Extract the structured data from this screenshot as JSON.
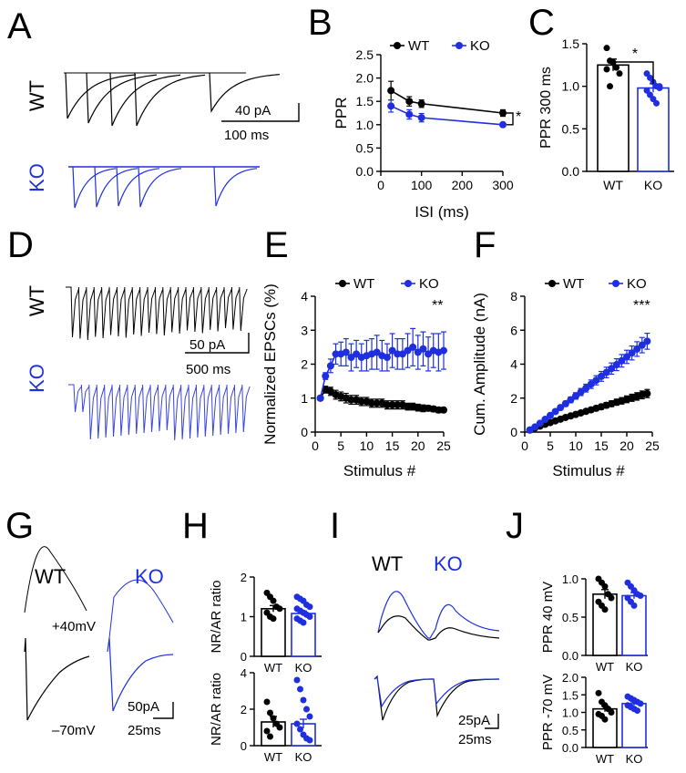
{
  "colors": {
    "wt": "#000000",
    "ko": "#1f2fe0"
  },
  "panel_labels": {
    "A": "A",
    "B": "B",
    "C": "C",
    "D": "D",
    "E": "E",
    "F": "F",
    "G": "G",
    "H": "H",
    "I": "I",
    "J": "J"
  },
  "conditions": {
    "wt": "WT",
    "ko": "KO"
  },
  "traces": {
    "A": {
      "scale_y": "40 pA",
      "scale_x": "100 ms"
    },
    "D": {
      "scale_y": "50 pA",
      "scale_x": "500 ms"
    },
    "G": {
      "hold_pos": "+40mV",
      "hold_neg": "–70mV",
      "scale_y": "50pA",
      "scale_x": "25ms"
    },
    "I": {
      "scale_y": "25pA",
      "scale_x": "25ms"
    }
  },
  "chart_data": [
    {
      "panel": "B",
      "type": "line",
      "xlabel": "ISI (ms)",
      "ylabel": "PPR",
      "xlim": [
        0,
        300
      ],
      "ylim": [
        0,
        2.5
      ],
      "xticks": [
        "0",
        "100",
        "200",
        "300"
      ],
      "yticks": [
        "0.0",
        "0.5",
        "1.0",
        "1.5",
        "2.0",
        "2.5"
      ],
      "legend": [
        "WT",
        "KO"
      ],
      "significance": "*",
      "x": [
        25,
        70,
        100,
        300
      ],
      "series": [
        {
          "name": "WT",
          "values": [
            1.73,
            1.5,
            1.45,
            1.25
          ],
          "errors": [
            0.2,
            0.1,
            0.08,
            0.07
          ]
        },
        {
          "name": "KO",
          "values": [
            1.4,
            1.22,
            1.15,
            1.0
          ],
          "errors": [
            0.13,
            0.1,
            0.09,
            0.04
          ]
        }
      ]
    },
    {
      "panel": "C",
      "type": "bar",
      "ylabel": "PPR 300 ms",
      "ylim": [
        0,
        1.5
      ],
      "yticks": [
        "0.0",
        "0.5",
        "1.0",
        "1.5"
      ],
      "categories": [
        "WT",
        "KO"
      ],
      "values": [
        1.25,
        0.98
      ],
      "errors": [
        0.07,
        0.05
      ],
      "significance": "*",
      "points": [
        [
          1.45,
          1.3,
          1.28,
          1.22,
          1.15,
          1.2,
          1.0
        ],
        [
          1.15,
          1.1,
          1.05,
          1.0,
          0.98,
          0.95,
          0.9,
          0.85,
          0.8,
          1.0
        ]
      ]
    },
    {
      "panel": "E",
      "type": "line",
      "xlabel": "Stimulus #",
      "ylabel": "Normalized EPSCs (%)",
      "xlim": [
        0,
        25
      ],
      "ylim": [
        0,
        4
      ],
      "xticks": [
        "0",
        "5",
        "10",
        "15",
        "20",
        "25"
      ],
      "yticks": [
        "0",
        "1",
        "2",
        "3",
        "4"
      ],
      "legend": [
        "WT",
        "KO"
      ],
      "significance": "**",
      "x": [
        1,
        2,
        3,
        4,
        5,
        6,
        7,
        8,
        9,
        10,
        11,
        12,
        13,
        14,
        15,
        16,
        17,
        18,
        19,
        20,
        21,
        22,
        23,
        24,
        25
      ],
      "series": [
        {
          "name": "WT",
          "values": [
            1.0,
            1.25,
            1.2,
            1.1,
            1.05,
            1.0,
            0.95,
            0.95,
            0.9,
            0.9,
            0.85,
            0.85,
            0.85,
            0.8,
            0.8,
            0.8,
            0.8,
            0.75,
            0.75,
            0.72,
            0.7,
            0.7,
            0.68,
            0.65,
            0.65
          ],
          "errors": [
            0,
            0.1,
            0.12,
            0.13,
            0.13,
            0.14,
            0.13,
            0.13,
            0.12,
            0.12,
            0.12,
            0.12,
            0.12,
            0.12,
            0.12,
            0.12,
            0.12,
            0.1,
            0.1,
            0.1,
            0.1,
            0.08,
            0.08,
            0.08,
            0.06
          ]
        },
        {
          "name": "KO",
          "values": [
            1.0,
            1.65,
            1.95,
            2.3,
            2.3,
            2.35,
            2.2,
            2.3,
            2.2,
            2.25,
            2.3,
            2.35,
            2.25,
            2.2,
            2.4,
            2.3,
            2.3,
            2.4,
            2.5,
            2.35,
            2.45,
            2.3,
            2.4,
            2.35,
            2.4
          ],
          "errors": [
            0,
            0.1,
            0.2,
            0.3,
            0.35,
            0.4,
            0.4,
            0.4,
            0.4,
            0.45,
            0.45,
            0.5,
            0.45,
            0.4,
            0.5,
            0.45,
            0.45,
            0.5,
            0.55,
            0.5,
            0.5,
            0.5,
            0.5,
            0.55,
            0.55
          ]
        }
      ]
    },
    {
      "panel": "F",
      "type": "line",
      "xlabel": "Stimulus #",
      "ylabel": "Cum. Amplitude (nA)",
      "xlim": [
        0,
        25
      ],
      "ylim": [
        0,
        8
      ],
      "xticks": [
        "0",
        "5",
        "10",
        "15",
        "20",
        "25"
      ],
      "yticks": [
        "0",
        "2",
        "4",
        "6",
        "8"
      ],
      "legend": [
        "WT",
        "KO"
      ],
      "significance": "***",
      "x": [
        1,
        2,
        3,
        4,
        5,
        6,
        7,
        8,
        9,
        10,
        11,
        12,
        13,
        14,
        15,
        16,
        17,
        18,
        19,
        20,
        21,
        22,
        23,
        24
      ],
      "series": [
        {
          "name": "WT",
          "values": [
            0.12,
            0.24,
            0.35,
            0.46,
            0.56,
            0.66,
            0.76,
            0.86,
            0.95,
            1.04,
            1.13,
            1.22,
            1.31,
            1.4,
            1.49,
            1.58,
            1.67,
            1.76,
            1.84,
            1.93,
            2.02,
            2.1,
            2.19,
            2.27
          ],
          "errors": [
            0.01,
            0.02,
            0.03,
            0.04,
            0.05,
            0.06,
            0.07,
            0.08,
            0.09,
            0.1,
            0.11,
            0.12,
            0.13,
            0.14,
            0.15,
            0.16,
            0.17,
            0.18,
            0.19,
            0.2,
            0.21,
            0.22,
            0.23,
            0.24
          ]
        },
        {
          "name": "KO",
          "values": [
            0.12,
            0.3,
            0.52,
            0.75,
            0.98,
            1.21,
            1.44,
            1.67,
            1.9,
            2.13,
            2.36,
            2.59,
            2.82,
            3.05,
            3.28,
            3.51,
            3.74,
            3.97,
            4.2,
            4.43,
            4.66,
            4.89,
            5.12,
            5.35
          ],
          "errors": [
            0.01,
            0.03,
            0.05,
            0.07,
            0.09,
            0.11,
            0.13,
            0.15,
            0.17,
            0.19,
            0.21,
            0.23,
            0.25,
            0.27,
            0.29,
            0.31,
            0.33,
            0.35,
            0.37,
            0.39,
            0.41,
            0.43,
            0.45,
            0.47
          ]
        }
      ]
    },
    {
      "panel": "H-top",
      "type": "bar",
      "ylabel": "NR/AR ratio",
      "ylim": [
        0,
        2
      ],
      "yticks": [
        "0",
        "1",
        "2"
      ],
      "categories": [
        "WT",
        "KO"
      ],
      "values": [
        1.2,
        1.08
      ],
      "errors": [
        0.08,
        0.06
      ],
      "points": [
        [
          1.6,
          1.5,
          1.4,
          1.25,
          1.2,
          1.1,
          1.0,
          0.95
        ],
        [
          1.5,
          1.45,
          1.4,
          1.3,
          1.25,
          1.2,
          1.15,
          1.1,
          1.05,
          1.0,
          0.95,
          0.9,
          0.85
        ]
      ]
    },
    {
      "panel": "H-bottom",
      "type": "bar",
      "ylabel": "NR/AR ratio",
      "ylim": [
        0,
        4
      ],
      "yticks": [
        "0",
        "2",
        "4"
      ],
      "categories": [
        "WT",
        "KO"
      ],
      "values": [
        1.3,
        1.2
      ],
      "errors": [
        0.3,
        0.25
      ],
      "points": [
        [
          2.4,
          1.8,
          1.5,
          1.2,
          1.0,
          0.8,
          0.5
        ],
        [
          3.6,
          3.1,
          2.5,
          2.0,
          1.6,
          1.2,
          0.9,
          0.6,
          0.4,
          0.3
        ]
      ]
    },
    {
      "panel": "J-top",
      "type": "bar",
      "ylabel": "PPR 40 mV",
      "ylim": [
        0,
        1.0
      ],
      "yticks": [
        "0.0",
        "0.5",
        "1.0"
      ],
      "categories": [
        "WT",
        "KO"
      ],
      "values": [
        0.8,
        0.78
      ],
      "errors": [
        0.06,
        0.04
      ],
      "points": [
        [
          1.0,
          0.95,
          0.9,
          0.8,
          0.75,
          0.7,
          0.65,
          0.6
        ],
        [
          0.95,
          0.9,
          0.85,
          0.8,
          0.78,
          0.75,
          0.7,
          0.65
        ]
      ]
    },
    {
      "panel": "J-bottom",
      "type": "bar",
      "ylabel": "PPR -70 mV",
      "ylim": [
        0,
        2.0
      ],
      "yticks": [
        "0.0",
        "0.5",
        "1.0",
        "1.5",
        "2.0"
      ],
      "categories": [
        "WT",
        "KO"
      ],
      "values": [
        1.1,
        1.25
      ],
      "errors": [
        0.08,
        0.05
      ],
      "points": [
        [
          1.55,
          1.3,
          1.2,
          1.1,
          1.0,
          0.95,
          0.9,
          0.8
        ],
        [
          1.45,
          1.4,
          1.35,
          1.3,
          1.25,
          1.2,
          1.15,
          1.1,
          1.05
        ]
      ]
    }
  ]
}
